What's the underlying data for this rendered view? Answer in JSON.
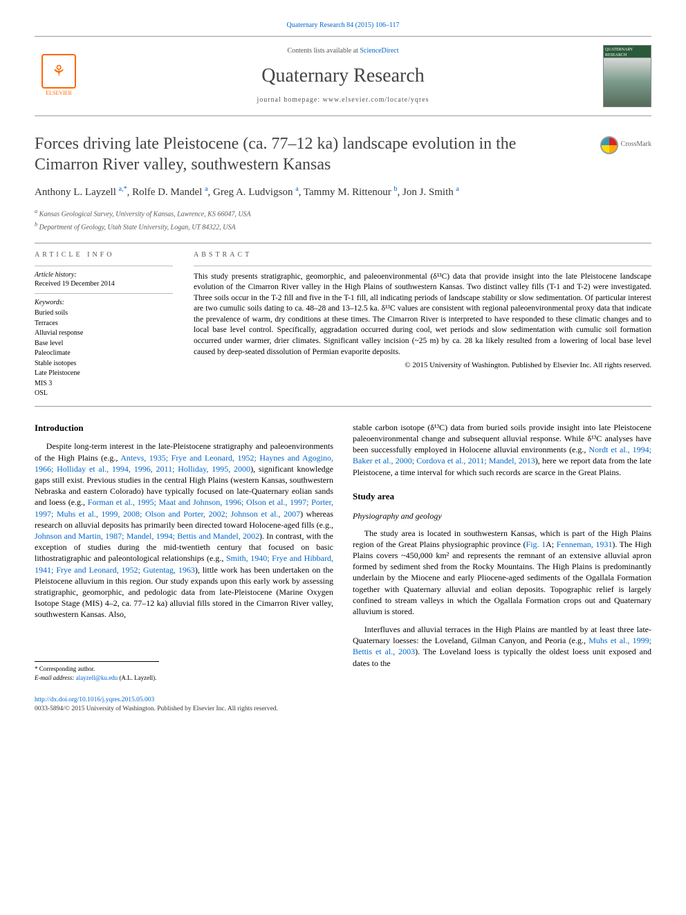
{
  "citation": "Quaternary Research 84 (2015) 106–117",
  "header": {
    "contents_prefix": "Contents lists available at ",
    "contents_link": "ScienceDirect",
    "journal": "Quaternary Research",
    "homepage_prefix": "journal homepage: ",
    "homepage_url": "www.elsevier.com/locate/yqres",
    "publisher_label": "ELSEVIER",
    "cover_label": "QUATERNARY RESEARCH"
  },
  "title": "Forces driving late Pleistocene (ca. 77–12 ka) landscape evolution in the Cimarron River valley, southwestern Kansas",
  "crossmark": "CrossMark",
  "authors_html": "Anthony L. Layzell <sup>a,*</sup>, Rolfe D. Mandel <sup>a</sup>, Greg A. Ludvigson <sup>a</sup>, Tammy M. Rittenour <sup>b</sup>, Jon J. Smith <sup>a</sup>",
  "authors": [
    {
      "name": "Anthony L. Layzell",
      "sup": "a,*"
    },
    {
      "name": "Rolfe D. Mandel",
      "sup": "a"
    },
    {
      "name": "Greg A. Ludvigson",
      "sup": "a"
    },
    {
      "name": "Tammy M. Rittenour",
      "sup": "b"
    },
    {
      "name": "Jon J. Smith",
      "sup": "a"
    }
  ],
  "affiliations": [
    {
      "sup": "a",
      "text": "Kansas Geological Survey, University of Kansas, Lawrence, KS 66047, USA"
    },
    {
      "sup": "b",
      "text": "Department of Geology, Utah State University, Logan, UT 84322, USA"
    }
  ],
  "info": {
    "heading": "ARTICLE INFO",
    "history_label": "Article history:",
    "history_value": "Received 19 December 2014",
    "keywords_label": "Keywords:",
    "keywords": [
      "Buried soils",
      "Terraces",
      "Alluvial response",
      "Base level",
      "Paleoclimate",
      "Stable isotopes",
      "Late Pleistocene",
      "MIS 3",
      "OSL"
    ]
  },
  "abstract": {
    "heading": "ABSTRACT",
    "text": "This study presents stratigraphic, geomorphic, and paleoenvironmental (δ¹³C) data that provide insight into the late Pleistocene landscape evolution of the Cimarron River valley in the High Plains of southwestern Kansas. Two distinct valley fills (T-1 and T-2) were investigated. Three soils occur in the T-2 fill and five in the T-1 fill, all indicating periods of landscape stability or slow sedimentation. Of particular interest are two cumulic soils dating to ca. 48–28 and 13–12.5 ka. δ¹³C values are consistent with regional paleoenvironmental proxy data that indicate the prevalence of warm, dry conditions at these times. The Cimarron River is interpreted to have responded to these climatic changes and to local base level control. Specifically, aggradation occurred during cool, wet periods and slow sedimentation with cumulic soil formation occurred under warmer, drier climates. Significant valley incision (~25 m) by ca. 28 ka likely resulted from a lowering of local base level caused by deep-seated dissolution of Permian evaporite deposits.",
    "copyright": "© 2015 University of Washington. Published by Elsevier Inc. All rights reserved."
  },
  "sections": {
    "intro_heading": "Introduction",
    "intro_p1a": "Despite long-term interest in the late-Pleistocene stratigraphy and paleoenvironments of the High Plains (e.g., ",
    "intro_p1_link1": "Antevs, 1935; Frye and Leonard, 1952; Haynes and Agogino, 1966; Holliday et al., 1994, 1996, 2011; Holliday, 1995, 2000",
    "intro_p1b": "), significant knowledge gaps still exist. Previous studies in the central High Plains (western Kansas, southwestern Nebraska and eastern Colorado) have typically focused on late-Quaternary eolian sands and loess (e.g., ",
    "intro_p1_link2": "Forman et al., 1995; Maat and Johnson, 1996; Olson et al., 1997; Porter, 1997; Muhs et al., 1999, 2008; Olson and Porter, 2002; Johnson et al., 2007",
    "intro_p1c": ") whereas research on alluvial deposits has primarily been directed toward Holocene-aged fills (e.g., ",
    "intro_p1_link3": "Johnson and Martin, 1987; Mandel, 1994; Bettis and Mandel, 2002",
    "intro_p1d": "). In contrast, with the exception of studies during the mid-twentieth century that focused on basic lithostratigraphic and paleontological relationships (e.g., ",
    "intro_p1_link4": "Smith, 1940; Frye and Hibbard, 1941; Frye and Leonard, 1952; Gutentag, 1963",
    "intro_p1e": "), little work has been undertaken on the Pleistocene alluvium in this region. Our study expands upon this early work by assessing stratigraphic, geomorphic, and pedologic data from late-Pleistocene (Marine Oxygen Isotope Stage (MIS) 4–2, ca. 77–12 ka) alluvial fills stored in the Cimarron River valley, southwestern Kansas. Also,",
    "intro_p2a": "stable carbon isotope (δ¹³C) data from buried soils provide insight into late Pleistocene paleoenvironmental change and subsequent alluvial response. While δ¹³C analyses have been successfully employed in Holocene alluvial environments (e.g., ",
    "intro_p2_link1": "Nordt et al., 1994; Baker et al., 2000; Cordova et al., 2011; Mandel, 2013",
    "intro_p2b": "), here we report data from the late Pleistocene, a time interval for which such records are scarce in the Great Plains.",
    "study_heading": "Study area",
    "phys_heading": "Physiography and geology",
    "phys_p1a": "The study area is located in southwestern Kansas, which is part of the High Plains region of the Great Plains physiographic province (",
    "phys_p1_link1": "Fig. 1",
    "phys_p1b": "A; ",
    "phys_p1_link2": "Fenneman, 1931",
    "phys_p1c": "). The High Plains covers ~450,000 km² and represents the remnant of an extensive alluvial apron formed by sediment shed from the Rocky Mountains. The High Plains is predominantly underlain by the Miocene and early Pliocene-aged sediments of the Ogallala Formation together with Quaternary alluvial and eolian deposits. Topographic relief is largely confined to stream valleys in which the Ogallala Formation crops out and Quaternary alluvium is stored.",
    "phys_p2a": "Interfluves and alluvial terraces in the High Plains are mantled by at least three late-Quaternary loesses: the Loveland, Gilman Canyon, and Peoria (e.g., ",
    "phys_p2_link1": "Muhs et al., 1999; Bettis et al., 2003",
    "phys_p2b": "). The Loveland loess is typically the oldest loess unit exposed and dates to the"
  },
  "corr": {
    "label": "* Corresponding author.",
    "email_label": "E-mail address:",
    "email": "alayzell@ku.edu",
    "email_suffix": "(A.L. Layzell)."
  },
  "footer": {
    "doi": "http://dx.doi.org/10.1016/j.yqres.2015.05.003",
    "issn_line": "0033-5894/© 2015 University of Washington. Published by Elsevier Inc. All rights reserved."
  },
  "colors": {
    "link": "#0066cc",
    "text": "#000000",
    "muted": "#555555",
    "rule": "#999999",
    "elsevier": "#ff6600"
  }
}
